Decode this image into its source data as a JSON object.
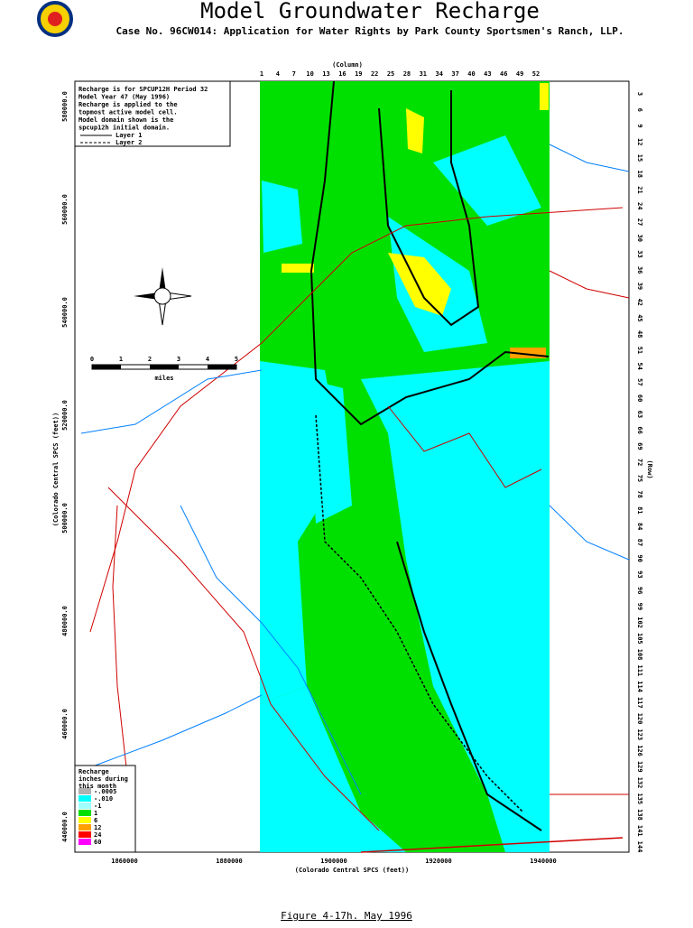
{
  "header": {
    "title": "Model Groundwater Recharge",
    "subtitle": "Case No. 96CW014: Application for Water Rights by Park County Sportsmen's Ranch, LLP."
  },
  "map": {
    "column_label": "(Column)",
    "row_label": "(Row)",
    "columns": [
      "1",
      "4",
      "7",
      "10",
      "13",
      "16",
      "19",
      "22",
      "25",
      "28",
      "31",
      "34",
      "37",
      "40",
      "43",
      "46",
      "49",
      "52"
    ],
    "rows": [
      "3",
      "6",
      "9",
      "12",
      "15",
      "18",
      "21",
      "24",
      "27",
      "30",
      "33",
      "36",
      "39",
      "42",
      "45",
      "48",
      "51",
      "54",
      "57",
      "60",
      "63",
      "66",
      "69",
      "72",
      "75",
      "78",
      "81",
      "84",
      "87",
      "90",
      "93",
      "96",
      "99",
      "102",
      "105",
      "108",
      "111",
      "114",
      "117",
      "120",
      "123",
      "126",
      "129",
      "132",
      "135",
      "138",
      "141",
      "144"
    ],
    "y_axis_title": "(Colorado Central SPCS (feet))",
    "y_ticks": [
      "580000.0",
      "560000.0",
      "540000.0",
      "520000.0",
      "500000.0",
      "480000.0",
      "460000.0",
      "440000.0"
    ],
    "x_axis_title": "(Colorado Central SPCS (feet))",
    "x_ticks": [
      "1860000",
      "1880000",
      "1900000",
      "1920000",
      "1940000"
    ],
    "note": [
      "Recharge is for SPCUP12H Period 32",
      "Model Year 47 (May 1996)",
      "Recharge is applied to the",
      "topmost active model cell.",
      "Model domain shown is the",
      "spcup12h initial domain."
    ],
    "layers": [
      "Layer 1",
      "Layer 2"
    ],
    "scale": {
      "ticks": [
        "0",
        "1",
        "2",
        "3",
        "4",
        "5"
      ],
      "unit": "miles"
    },
    "legend": {
      "title": [
        "Recharge",
        "inches during",
        "this month"
      ],
      "items": [
        {
          "label": "-.0005",
          "color": "#b0b0b0"
        },
        {
          "label": "-.010",
          "color": "#00ffff"
        },
        {
          "label": "-1",
          "color": "#a0ffff"
        },
        {
          "label": "1",
          "color": "#00e000"
        },
        {
          "label": "6",
          "color": "#ffff00"
        },
        {
          "label": "12",
          "color": "#ffa000"
        },
        {
          "label": "24",
          "color": "#ff0000"
        },
        {
          "label": "60",
          "color": "#ff00ff"
        }
      ]
    }
  },
  "caption": "Figure 4-17h.   May 1996"
}
